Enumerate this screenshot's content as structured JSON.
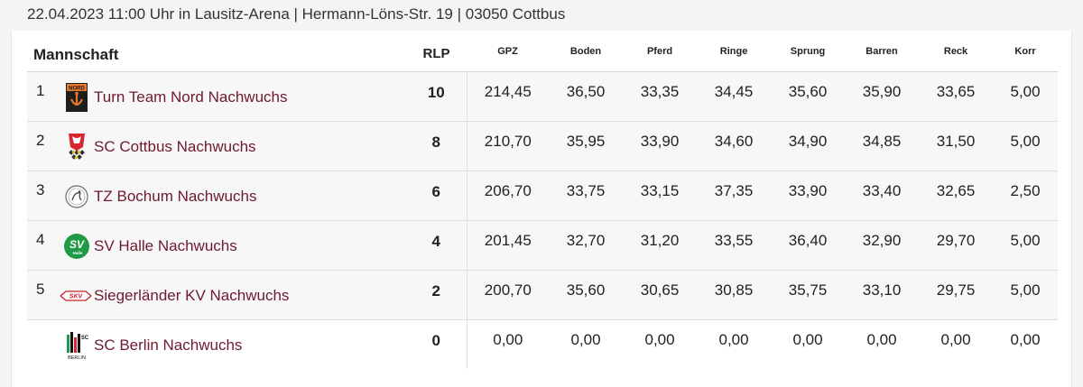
{
  "event_info": "22.04.2023 11:00 Uhr in Lausitz-Arena | Hermann-Löns-Str. 19 | 03050 Cottbus",
  "headers": {
    "team": "Mannschaft",
    "rlp": "RLP",
    "gpz": "GPZ",
    "boden": "Boden",
    "pferd": "Pferd",
    "ringe": "Ringe",
    "sprung": "Sprung",
    "barren": "Barren",
    "reck": "Reck",
    "korr": "Korr"
  },
  "rows": [
    {
      "rank": "1",
      "team": "Turn Team Nord Nachwuchs",
      "logo": "turn-team-nord-logo",
      "rlp": "10",
      "gpz": "214,45",
      "boden": "36,50",
      "pferd": "33,35",
      "ringe": "34,45",
      "sprung": "35,60",
      "barren": "35,90",
      "reck": "33,65",
      "korr": "5,00"
    },
    {
      "rank": "2",
      "team": "SC Cottbus Nachwuchs",
      "logo": "sc-cottbus-logo",
      "rlp": "8",
      "gpz": "210,70",
      "boden": "35,95",
      "pferd": "33,90",
      "ringe": "34,60",
      "sprung": "34,90",
      "barren": "34,85",
      "reck": "31,50",
      "korr": "5,00"
    },
    {
      "rank": "3",
      "team": "TZ Bochum Nachwuchs",
      "logo": "tz-bochum-logo",
      "rlp": "6",
      "gpz": "206,70",
      "boden": "33,75",
      "pferd": "33,15",
      "ringe": "37,35",
      "sprung": "33,90",
      "barren": "33,40",
      "reck": "32,65",
      "korr": "2,50"
    },
    {
      "rank": "4",
      "team": "SV Halle Nachwuchs",
      "logo": "sv-halle-logo",
      "rlp": "4",
      "gpz": "201,45",
      "boden": "32,70",
      "pferd": "31,20",
      "ringe": "33,55",
      "sprung": "36,40",
      "barren": "32,90",
      "reck": "29,70",
      "korr": "5,00"
    },
    {
      "rank": "5",
      "team": "Siegerländer KV Nachwuchs",
      "logo": "siegerlaender-kv-logo",
      "rlp": "2",
      "gpz": "200,70",
      "boden": "35,60",
      "pferd": "30,65",
      "ringe": "30,85",
      "sprung": "35,75",
      "barren": "33,10",
      "reck": "29,75",
      "korr": "5,00"
    },
    {
      "rank": "",
      "team": "SC Berlin Nachwuchs",
      "logo": "sc-berlin-logo",
      "rlp": "0",
      "gpz": "0,00",
      "boden": "0,00",
      "pferd": "0,00",
      "ringe": "0,00",
      "sprung": "0,00",
      "barren": "0,00",
      "reck": "0,00",
      "korr": "0,00"
    }
  ],
  "logo_text": {
    "nord": "NORD",
    "svkv": "SKV",
    "halle_sv": "SV",
    "halle_sub": "Halle",
    "berlin_sc": "SC",
    "berlin_name": "BERLIN"
  },
  "colors": {
    "team_link": "#6d1a2e",
    "row_bg": "#f7f7f7",
    "border": "#dcdcdc"
  }
}
